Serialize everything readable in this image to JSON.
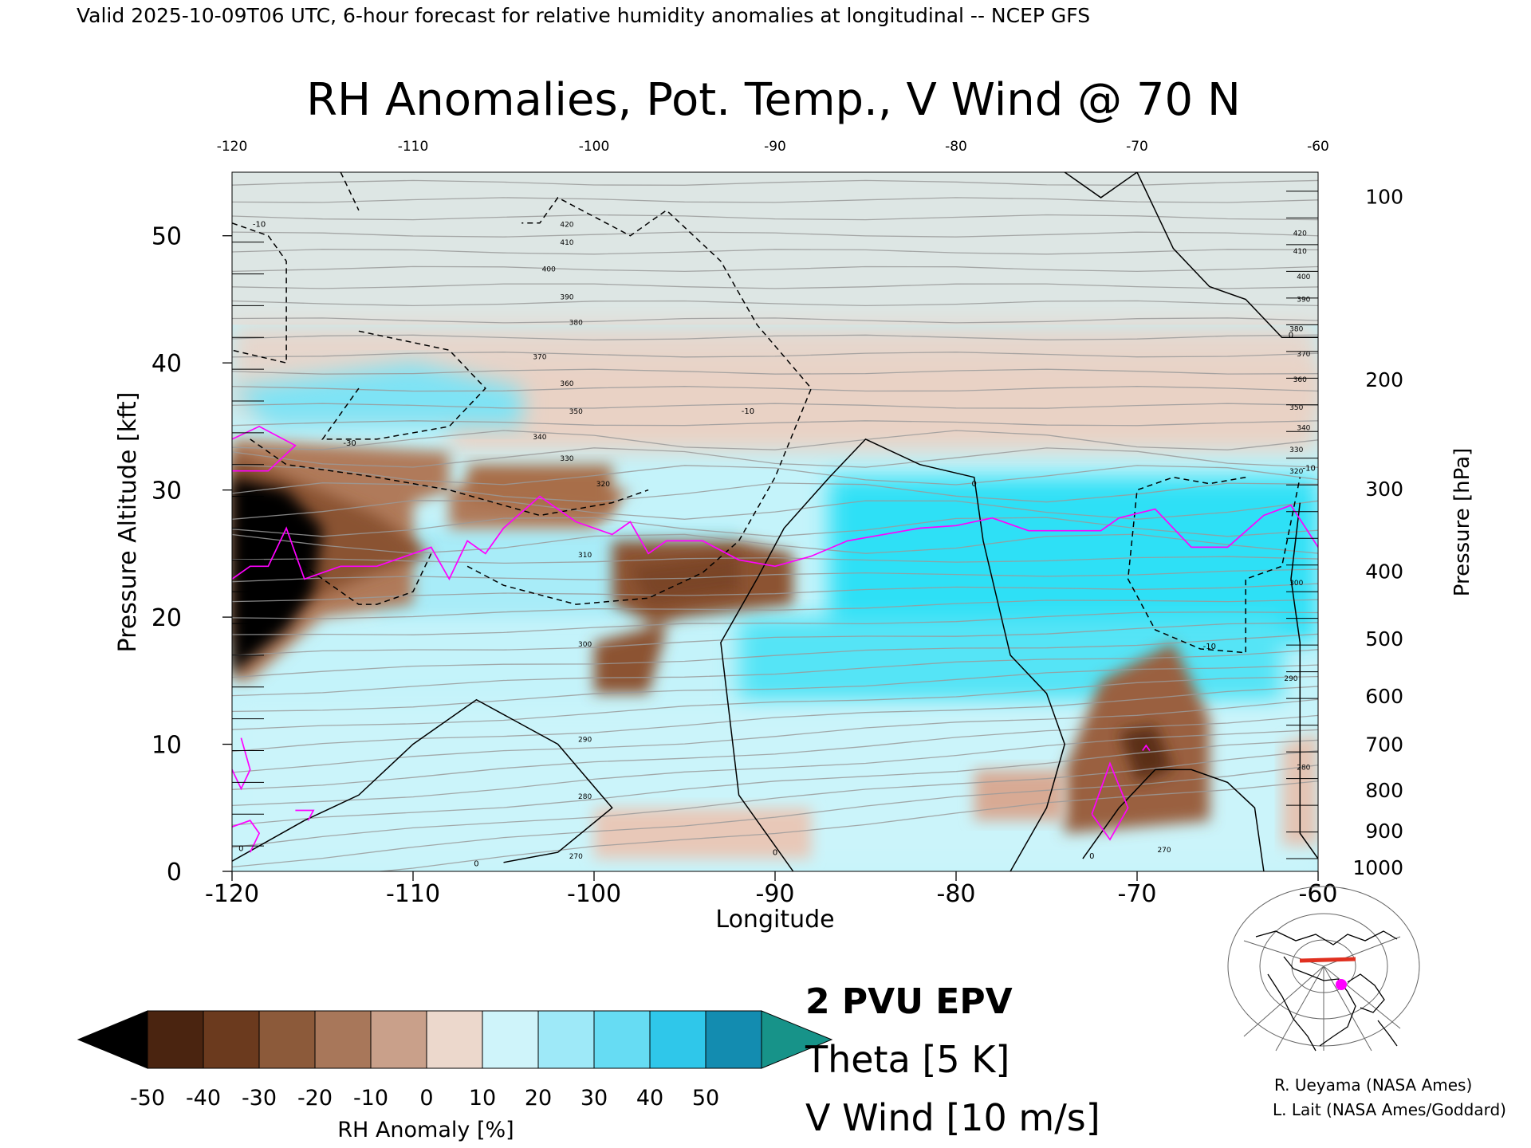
{
  "header": "Valid 2025-10-09T06 UTC, 6-hour forecast for relative humidity anomalies at longitudinal -- NCEP GFS",
  "chart_data": {
    "type": "heatmap",
    "title": "RH Anomalies, Pot. Temp., V Wind @ 70 N",
    "xlabel": "Longitude",
    "ylabel_left": "Pressure Altitude [kft]",
    "ylabel_right": "Pressure [hPa]",
    "xlim": [
      -120,
      -60
    ],
    "ylim": [
      0,
      55
    ],
    "x_ticks": [
      "-120",
      "-110",
      "-100",
      "-90",
      "-80",
      "-70",
      "-60"
    ],
    "x_ticks_top": [
      "-120",
      "-110",
      "-100",
      "-90",
      "-80",
      "-70",
      "-60"
    ],
    "y_ticks": [
      {
        "value": 0,
        "label": "0"
      },
      {
        "value": 10,
        "label": "10"
      },
      {
        "value": 20,
        "label": "20"
      },
      {
        "value": 30,
        "label": "30"
      },
      {
        "value": 40,
        "label": "40"
      },
      {
        "value": 50,
        "label": "50"
      }
    ],
    "pressure_ticks": [
      {
        "kft": 0.3,
        "label": "1000"
      },
      {
        "kft": 3.2,
        "label": "900"
      },
      {
        "kft": 6.4,
        "label": "800"
      },
      {
        "kft": 10.0,
        "label": "700"
      },
      {
        "kft": 13.8,
        "label": "600"
      },
      {
        "kft": 18.3,
        "label": "500"
      },
      {
        "kft": 23.6,
        "label": "400"
      },
      {
        "kft": 30.1,
        "label": "300"
      },
      {
        "kft": 38.7,
        "label": "200"
      },
      {
        "kft": 53.1,
        "label": "100"
      }
    ],
    "theta_labels": [
      {
        "lon": -101.5,
        "kft": 50.7,
        "label": "420"
      },
      {
        "lon": -101.5,
        "kft": 49.3,
        "label": "410"
      },
      {
        "lon": -102.5,
        "kft": 47.2,
        "label": "400"
      },
      {
        "lon": -101.5,
        "kft": 45.0,
        "label": "390"
      },
      {
        "lon": -101.0,
        "kft": 43.0,
        "label": "380"
      },
      {
        "lon": -103.0,
        "kft": 40.3,
        "label": "370"
      },
      {
        "lon": -101.5,
        "kft": 38.2,
        "label": "360"
      },
      {
        "lon": -101.0,
        "kft": 36.0,
        "label": "350"
      },
      {
        "lon": -103.0,
        "kft": 34.0,
        "label": "340"
      },
      {
        "lon": -101.5,
        "kft": 32.3,
        "label": "330"
      },
      {
        "lon": -99.5,
        "kft": 30.3,
        "label": "320"
      },
      {
        "lon": -100.5,
        "kft": 24.7,
        "label": "310"
      },
      {
        "lon": -100.5,
        "kft": 17.7,
        "label": "300"
      },
      {
        "lon": -100.5,
        "kft": 10.2,
        "label": "290"
      },
      {
        "lon": -100.5,
        "kft": 5.7,
        "label": "280"
      },
      {
        "lon": -101.0,
        "kft": 1.0,
        "label": "270"
      },
      {
        "lon": -61.0,
        "kft": 50.0,
        "label": "420"
      },
      {
        "lon": -61.0,
        "kft": 48.6,
        "label": "410"
      },
      {
        "lon": -60.8,
        "kft": 46.6,
        "label": "400"
      },
      {
        "lon": -60.8,
        "kft": 44.8,
        "label": "390"
      },
      {
        "lon": -61.2,
        "kft": 42.5,
        "label": "380"
      },
      {
        "lon": -60.8,
        "kft": 40.5,
        "label": "370"
      },
      {
        "lon": -61.0,
        "kft": 38.5,
        "label": "360"
      },
      {
        "lon": -61.2,
        "kft": 36.3,
        "label": "350"
      },
      {
        "lon": -60.8,
        "kft": 34.7,
        "label": "340"
      },
      {
        "lon": -61.2,
        "kft": 33.0,
        "label": "330"
      },
      {
        "lon": -61.2,
        "kft": 31.3,
        "label": "320"
      },
      {
        "lon": -61.2,
        "kft": 22.5,
        "label": "300"
      },
      {
        "lon": -61.5,
        "kft": 15.0,
        "label": "290"
      },
      {
        "lon": -60.8,
        "kft": 8.0,
        "label": "280"
      },
      {
        "lon": -68.5,
        "kft": 1.5,
        "label": "270"
      }
    ],
    "wind_labels": [
      {
        "lon": -118.5,
        "kft": 50.7,
        "label": "-10"
      },
      {
        "lon": -113.5,
        "kft": 33.5,
        "label": "-30"
      },
      {
        "lon": -91.5,
        "kft": 36.0,
        "label": "-10"
      },
      {
        "lon": -66.0,
        "kft": 17.5,
        "label": "-10"
      },
      {
        "lon": -60.5,
        "kft": 31.5,
        "label": "-10"
      },
      {
        "lon": -79.0,
        "kft": 30.3,
        "label": "0"
      },
      {
        "lon": -61.5,
        "kft": 42.0,
        "label": "0"
      },
      {
        "lon": -119.5,
        "kft": 1.6,
        "label": "0"
      },
      {
        "lon": -106.5,
        "kft": 0.4,
        "label": "0"
      },
      {
        "lon": -90.0,
        "kft": 1.3,
        "label": "0"
      },
      {
        "lon": -72.5,
        "kft": 1.0,
        "label": "0"
      }
    ],
    "colorbar": {
      "label": "RH Anomaly [%]",
      "ticks": [
        "-50",
        "-40",
        "-30",
        "-20",
        "-10",
        "0",
        "10",
        "20",
        "30",
        "40",
        "50"
      ],
      "colors": [
        "#4a2410",
        "#6b3a1e",
        "#8c5a3a",
        "#a8775a",
        "#c9a08a",
        "#ecd8cc",
        "#cff4fa",
        "#9ee9f8",
        "#66dcf3",
        "#2fc7ea",
        "#138cb0"
      ],
      "under_color": "#000000",
      "over_color": "#179389"
    }
  },
  "legend": {
    "epv": "2 PVU EPV",
    "theta": "Theta [5 K]",
    "vwind": "V Wind [10 m/s]",
    "colors": {
      "epv": "#ff00ff",
      "theta": "#aaaaaa",
      "vwind": "#000000"
    }
  },
  "credits": {
    "line1": "R. Ueyama (NASA Ames)",
    "line2": "L. Lait (NASA Ames/Goddard)"
  }
}
